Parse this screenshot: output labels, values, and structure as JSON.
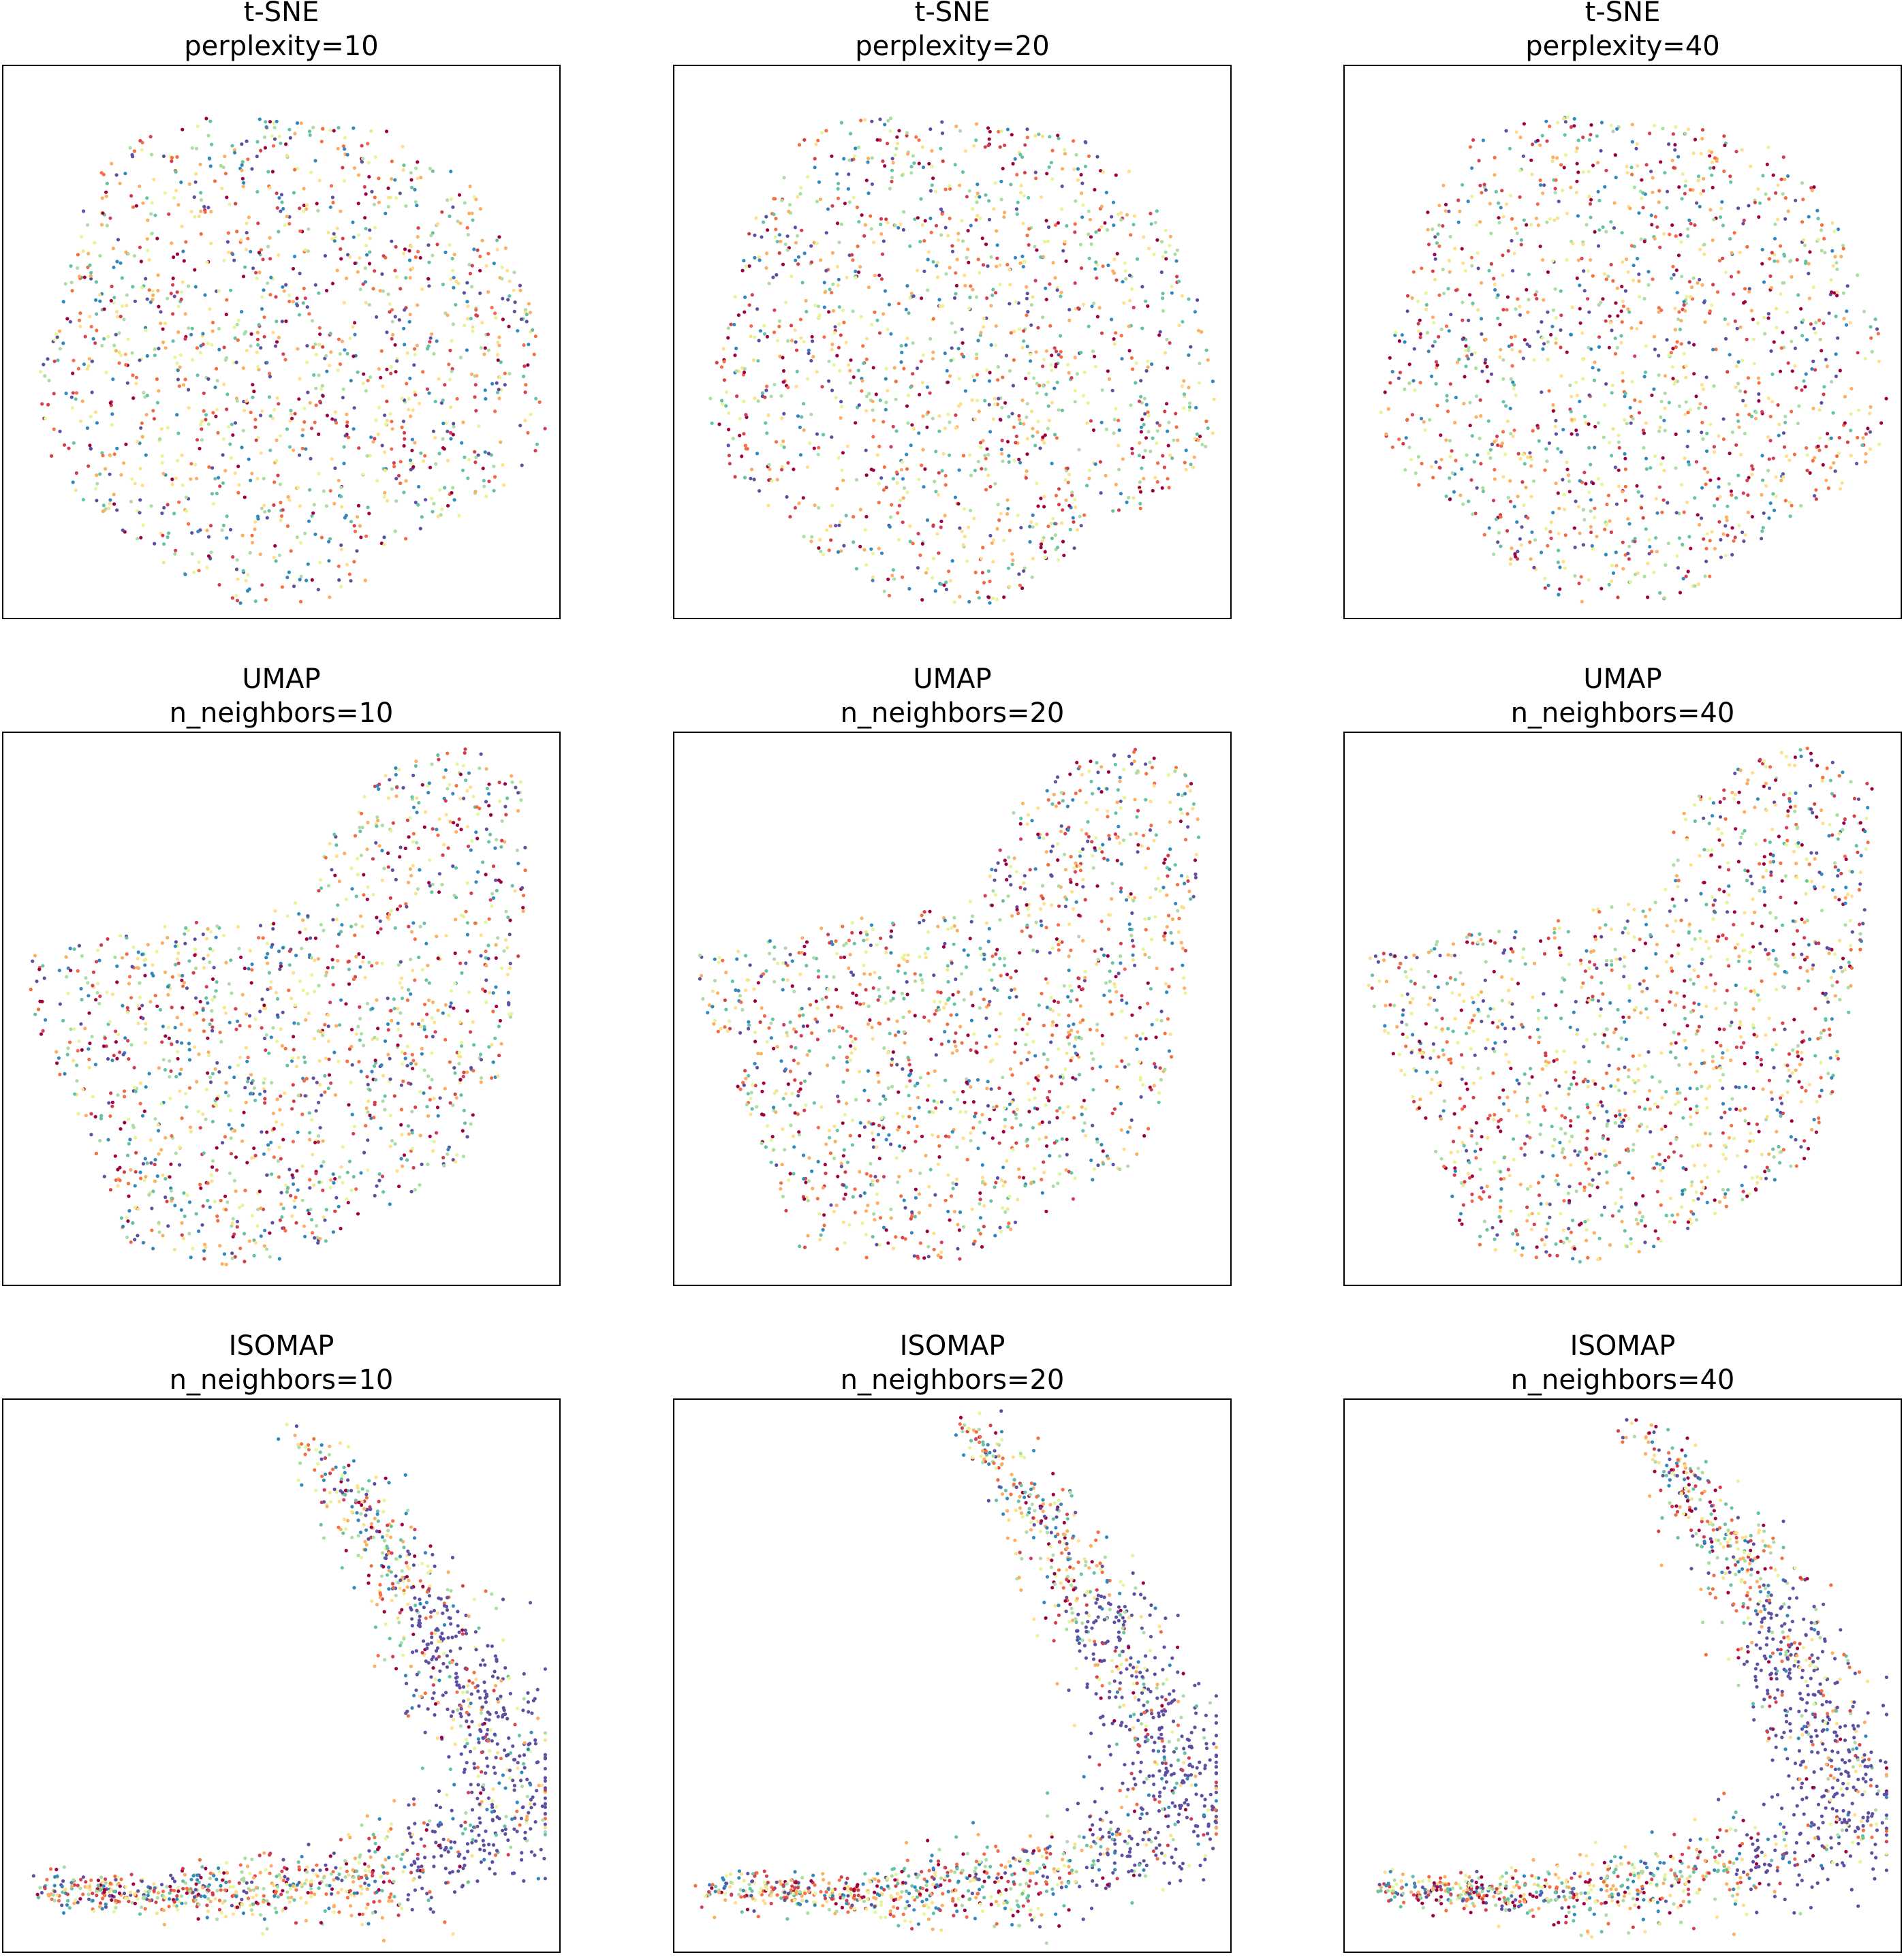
{
  "colormap": "Spectral",
  "colors": [
    "#9e0142",
    "#d53e4f",
    "#f46d43",
    "#fdae61",
    "#fee08b",
    "#e6f598",
    "#abdda4",
    "#66c2a5",
    "#3288bd",
    "#5e4fa2"
  ],
  "chart_data": [
    {
      "type": "scatter",
      "method": "t-SNE",
      "param": "perplexity=10",
      "shape": "blob",
      "seed": 11,
      "axes": "hidden"
    },
    {
      "type": "scatter",
      "method": "t-SNE",
      "param": "perplexity=20",
      "shape": "blob",
      "seed": 23,
      "axes": "hidden"
    },
    {
      "type": "scatter",
      "method": "t-SNE",
      "param": "perplexity=40",
      "shape": "blob",
      "seed": 37,
      "axes": "hidden"
    },
    {
      "type": "scatter",
      "method": "UMAP",
      "param": "n_neighbors=10",
      "shape": "umap",
      "seed": 41,
      "axes": "hidden"
    },
    {
      "type": "scatter",
      "method": "UMAP",
      "param": "n_neighbors=20",
      "shape": "umap",
      "seed": 53,
      "axes": "hidden"
    },
    {
      "type": "scatter",
      "method": "UMAP",
      "param": "n_neighbors=40",
      "shape": "umap",
      "seed": 67,
      "axes": "hidden"
    },
    {
      "type": "scatter",
      "method": "ISOMAP",
      "param": "n_neighbors=10",
      "shape": "isomap",
      "seed": 71,
      "axes": "hidden"
    },
    {
      "type": "scatter",
      "method": "ISOMAP",
      "param": "n_neighbors=20",
      "shape": "isomap",
      "seed": 83,
      "axes": "hidden"
    },
    {
      "type": "scatter",
      "method": "ISOMAP",
      "param": "n_neighbors=40",
      "shape": "isomap",
      "seed": 97,
      "axes": "hidden"
    }
  ]
}
